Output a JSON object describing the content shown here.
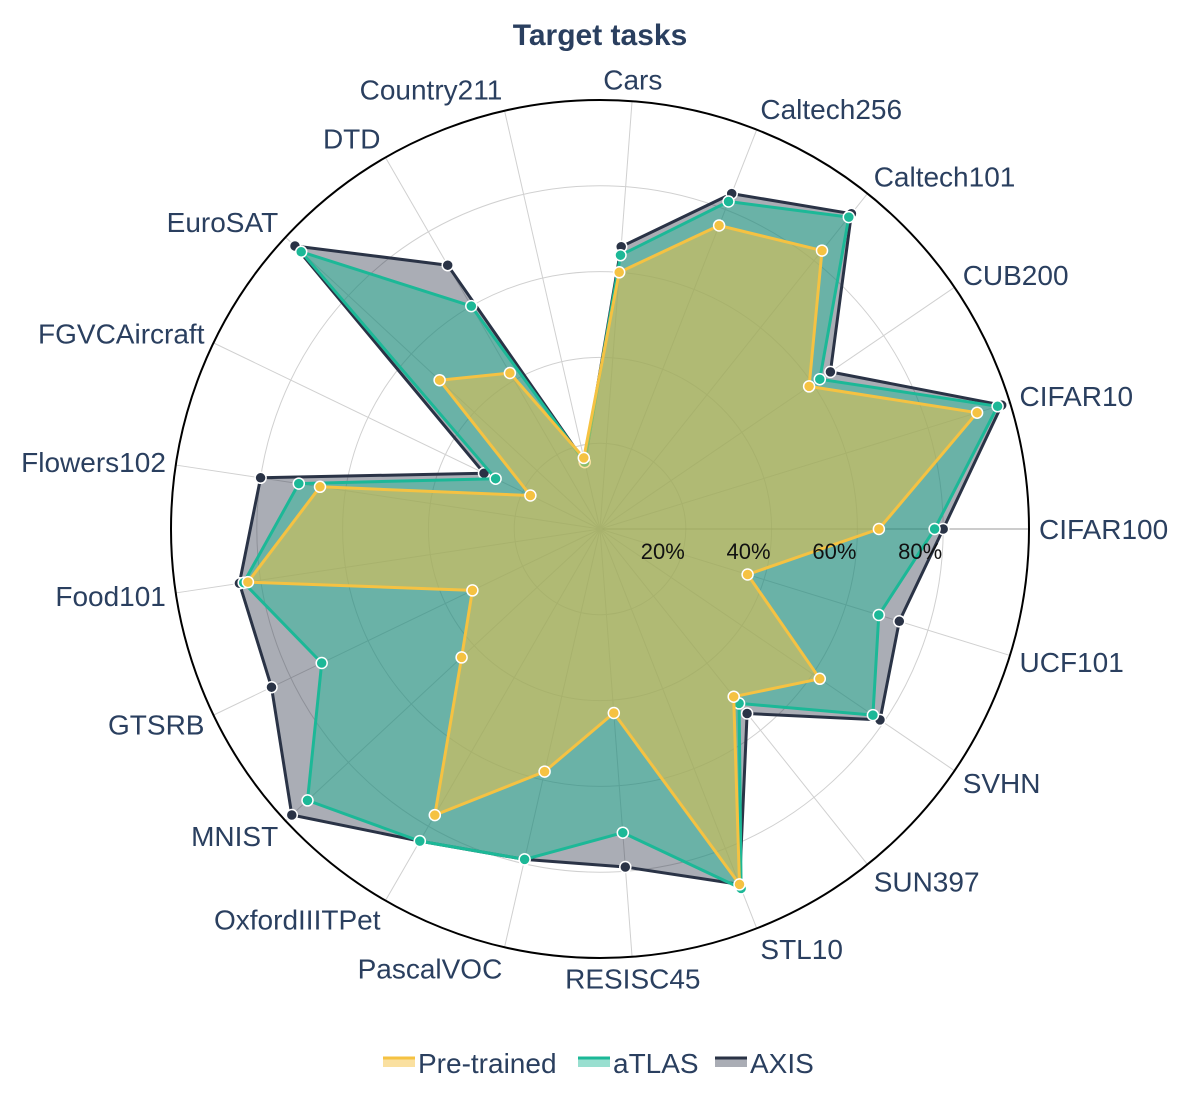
{
  "chart_data": {
    "type": "radar",
    "title": "Target tasks",
    "categories": [
      "CIFAR100",
      "CIFAR10",
      "CUB200",
      "Caltech101",
      "Caltech256",
      "Cars",
      "Country211",
      "DTD",
      "EuroSAT",
      "FGVCAircraft",
      "Flowers102",
      "Food101",
      "GTSRB",
      "MNIST",
      "OxfordIIITPet",
      "PascalVOC",
      "RESISC45",
      "STL10",
      "SUN397",
      "SVHN",
      "UCF101"
    ],
    "radial_ticks": [
      "20%",
      "40%",
      "60%",
      "80%"
    ],
    "radial_range": [
      0,
      100
    ],
    "grid": true,
    "legend_position": "bottom",
    "series": [
      {
        "name": "AXIS",
        "color": "#2a3346",
        "fill": "rgba(42,51,70,0.40)",
        "values": [
          80,
          98,
          65,
          94,
          84,
          66,
          16,
          71,
          97,
          30,
          80,
          85,
          85,
          98,
          84,
          79,
          79,
          89,
          55,
          79,
          73
        ]
      },
      {
        "name": "aTLAS",
        "color": "#1cb897",
        "fill": "rgba(28,184,151,0.45)",
        "values": [
          78,
          97,
          62,
          93,
          82,
          64,
          16,
          60,
          95,
          27,
          71,
          84,
          72,
          93,
          84,
          79,
          71,
          90,
          52,
          77,
          68
        ]
      },
      {
        "name": "Pre-trained",
        "color": "#f5c242",
        "fill": "rgba(245,194,66,0.50)",
        "values": [
          65,
          92,
          59,
          83,
          76,
          60,
          17,
          42,
          51,
          18,
          66,
          83,
          33,
          44,
          77,
          58,
          43,
          89,
          50,
          62,
          36
        ]
      }
    ],
    "legend": [
      "Pre-trained",
      "aTLAS",
      "AXIS"
    ]
  }
}
